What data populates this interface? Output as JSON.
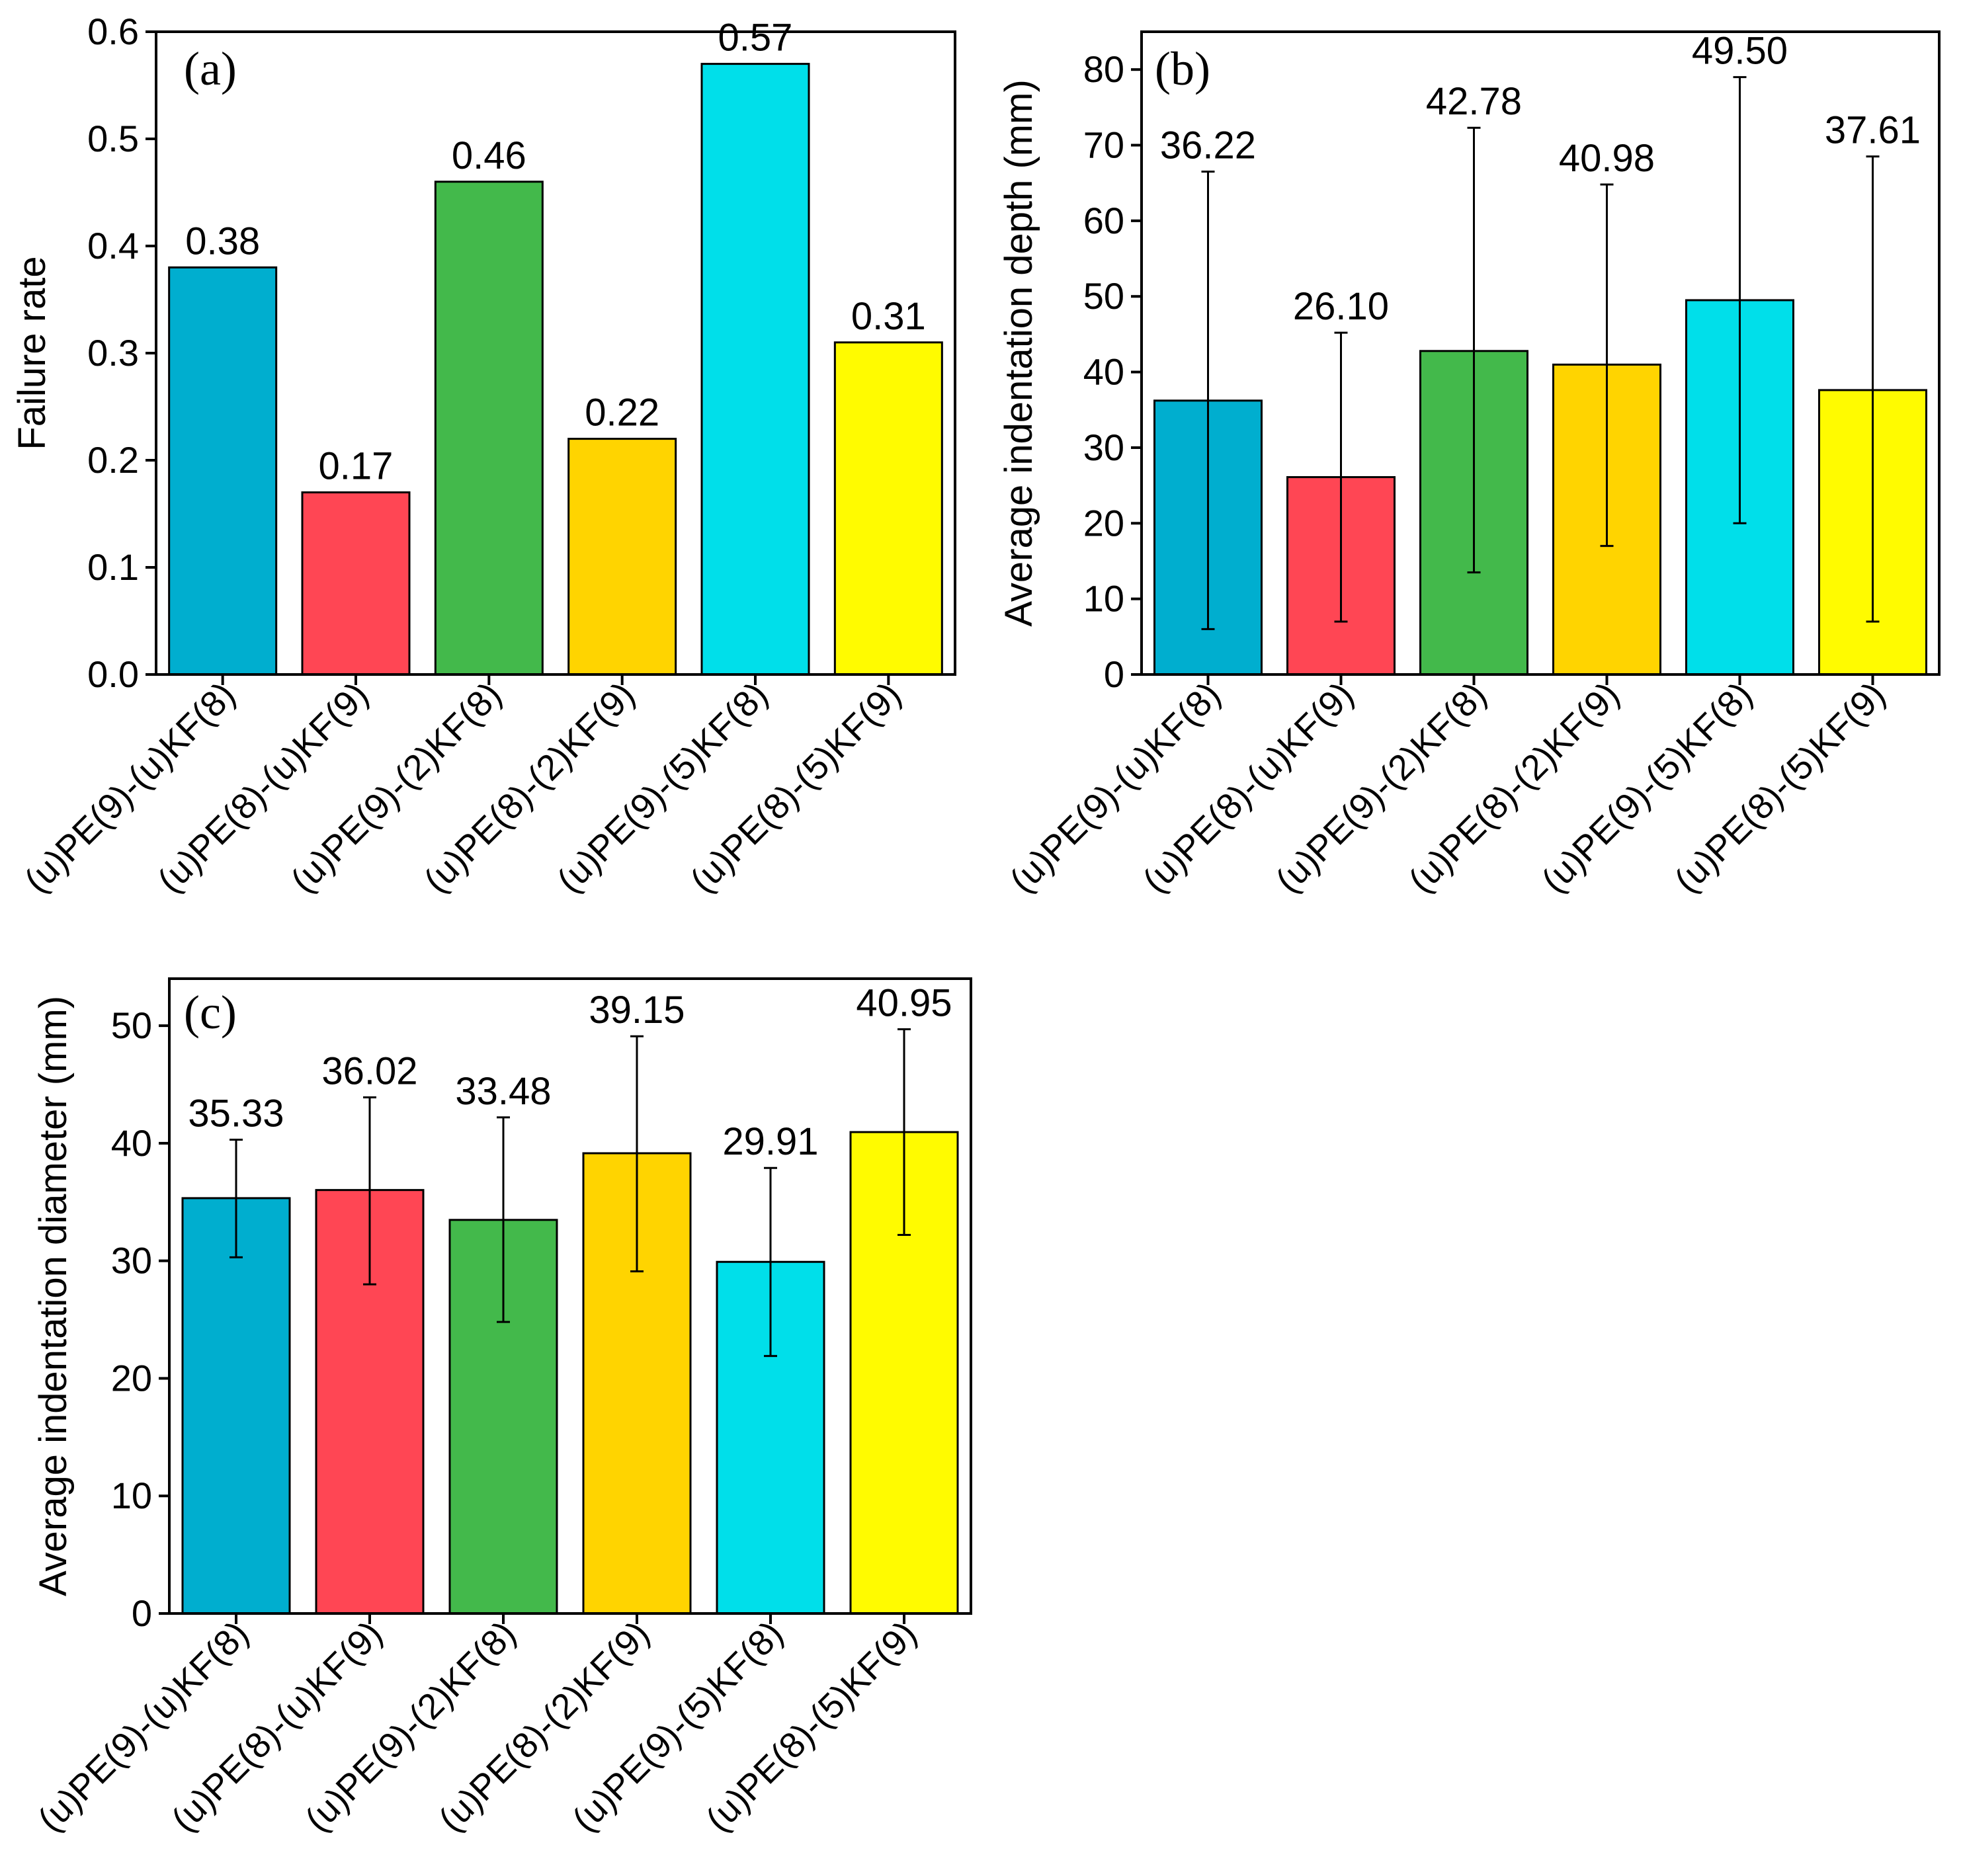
{
  "chart_data": [
    {
      "type": "bar",
      "panel": "(a)",
      "categories": [
        "(u)PE(9)-(u)KF(8)",
        "(u)PE(8)-(u)KF(9)",
        "(u)PE(9)-(2)KF(8)",
        "(u)PE(8)-(2)KF(9)",
        "(u)PE(9)-(5)KF(8)",
        "(u)PE(8)-(5)KF(9)"
      ],
      "values": [
        0.38,
        0.17,
        0.46,
        0.22,
        0.57,
        0.31
      ],
      "value_labels": [
        "0.38",
        "0.17",
        "0.46",
        "0.22",
        "0.57",
        "0.31"
      ],
      "ylabel": "Failure rate",
      "ylim": [
        0,
        0.6
      ],
      "yticks": [
        0.0,
        0.1,
        0.2,
        0.3,
        0.4,
        0.5,
        0.6
      ],
      "ytick_labels": [
        "0.0",
        "0.1",
        "0.2",
        "0.3",
        "0.4",
        "0.5",
        "0.6"
      ],
      "colors": [
        "#00AECF",
        "#FF4654",
        "#43B94B",
        "#FFD400",
        "#00DFEA",
        "#FFFB00"
      ],
      "grid": false
    },
    {
      "type": "bar",
      "panel": "(b)",
      "categories": [
        "(u)PE(9)-(u)KF(8)",
        "(u)PE(8)-(u)KF(9)",
        "(u)PE(9)-(2)KF(8)",
        "(u)PE(8)-(2)KF(9)",
        "(u)PE(9)-(5)KF(8)",
        "(u)PE(8)-(5)KF(9)"
      ],
      "values": [
        36.22,
        26.1,
        42.78,
        40.98,
        49.5,
        37.61
      ],
      "value_labels": [
        "36.22",
        "26.10",
        "42.78",
        "40.98",
        "49.50",
        "37.61"
      ],
      "error_low": [
        6.0,
        7.0,
        13.5,
        17.0,
        20.0,
        7.0
      ],
      "error_high": [
        66.5,
        45.2,
        72.3,
        64.8,
        79.0,
        68.5
      ],
      "ylabel": "Average indentation depth (mm)",
      "ylim": [
        0,
        85
      ],
      "yticks": [
        0,
        10,
        20,
        30,
        40,
        50,
        60,
        70,
        80
      ],
      "ytick_labels": [
        "0",
        "10",
        "20",
        "30",
        "40",
        "50",
        "60",
        "70",
        "80"
      ],
      "colors": [
        "#00AECF",
        "#FF4654",
        "#43B94B",
        "#FFD400",
        "#00DFEA",
        "#FFFB00"
      ],
      "grid": false
    },
    {
      "type": "bar",
      "panel": "(c)",
      "categories": [
        "(u)PE(9)-(u)KF(8)",
        "(u)PE(8)-(u)KF(9)",
        "(u)PE(9)-(2)KF(8)",
        "(u)PE(8)-(2)KF(9)",
        "(u)PE(9)-(5)KF(8)",
        "(u)PE(8)-(5)KF(9)"
      ],
      "values": [
        35.33,
        36.02,
        33.48,
        39.15,
        29.91,
        40.95
      ],
      "value_labels": [
        "35.33",
        "36.02",
        "33.48",
        "39.15",
        "29.91",
        "40.95"
      ],
      "error_low": [
        30.3,
        28.0,
        24.8,
        29.1,
        21.9,
        32.2
      ],
      "error_high": [
        40.3,
        43.9,
        42.2,
        49.1,
        37.9,
        49.7
      ],
      "ylabel": "Average indentation diameter (mm)",
      "ylim": [
        0,
        54
      ],
      "yticks": [
        0,
        10,
        20,
        30,
        40,
        50
      ],
      "ytick_labels": [
        "0",
        "10",
        "20",
        "30",
        "40",
        "50"
      ],
      "colors": [
        "#00AECF",
        "#FF4654",
        "#43B94B",
        "#FFD400",
        "#00DFEA",
        "#FFFB00"
      ],
      "grid": false
    }
  ]
}
